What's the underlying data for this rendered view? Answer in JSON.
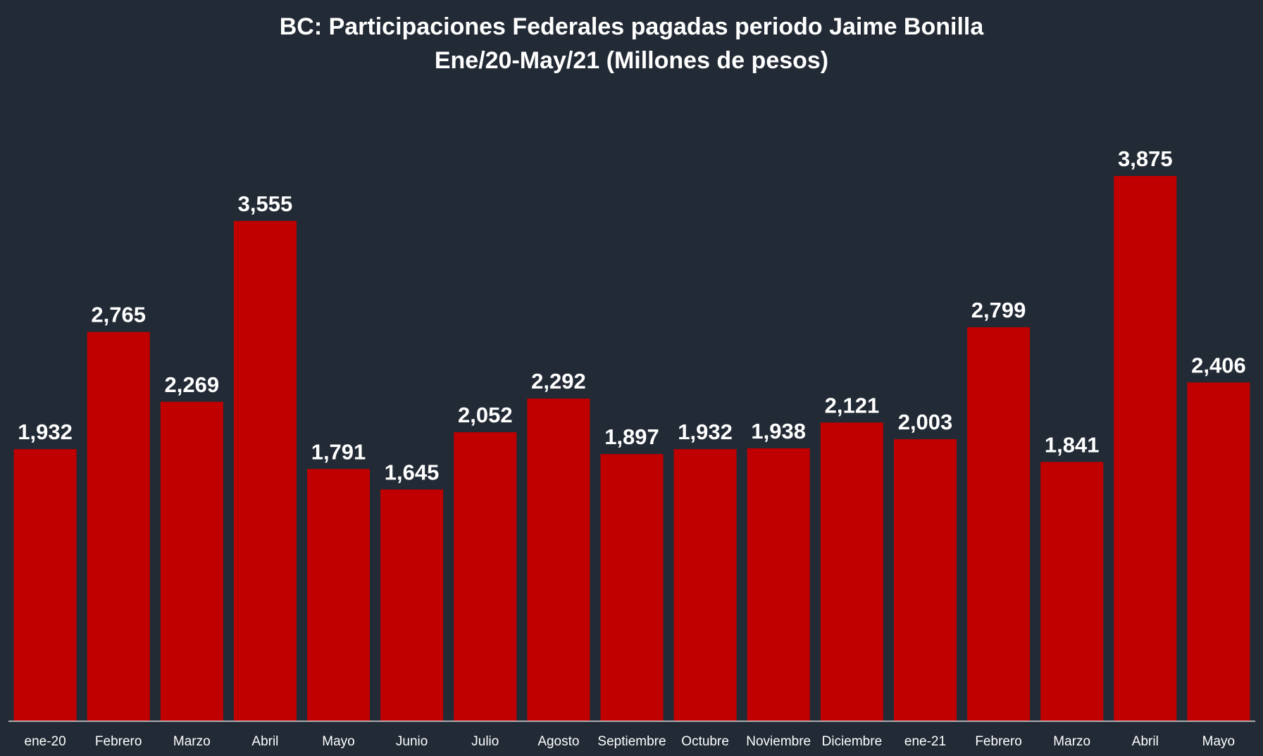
{
  "chart_data": {
    "type": "bar",
    "title": "BC: Participaciones Federales pagadas periodo Jaime Bonilla",
    "subtitle": "Ene/20-May/21 (Millones de pesos)",
    "xlabel": "",
    "ylabel": "",
    "categories": [
      "ene-20",
      "Febrero",
      "Marzo",
      "Abril",
      "Mayo",
      "Junio",
      "Julio",
      "Agosto",
      "Septiembre",
      "Octubre",
      "Noviembre",
      "Diciembre",
      "ene-21",
      "Febrero",
      "Marzo",
      "Abril",
      "Mayo"
    ],
    "values": [
      1932,
      2765,
      2269,
      3555,
      1791,
      1645,
      2052,
      2292,
      1897,
      1932,
      1938,
      2121,
      2003,
      2799,
      1841,
      3875,
      2406
    ],
    "data_labels": [
      "1,932",
      "2,765",
      "2,269",
      "3,555",
      "1,791",
      "1,645",
      "2,052",
      "2,292",
      "1,897",
      "1,932",
      "1,938",
      "2,121",
      "2,003",
      "2,799",
      "1,841",
      "3,875",
      "2,406"
    ],
    "ylim": [
      0,
      3875
    ],
    "grid": false,
    "legend": "none"
  },
  "colors": {
    "background": "#222a35",
    "bar": "#c00000",
    "text": "#ffffff",
    "axis_line": "#d9d9d9"
  }
}
